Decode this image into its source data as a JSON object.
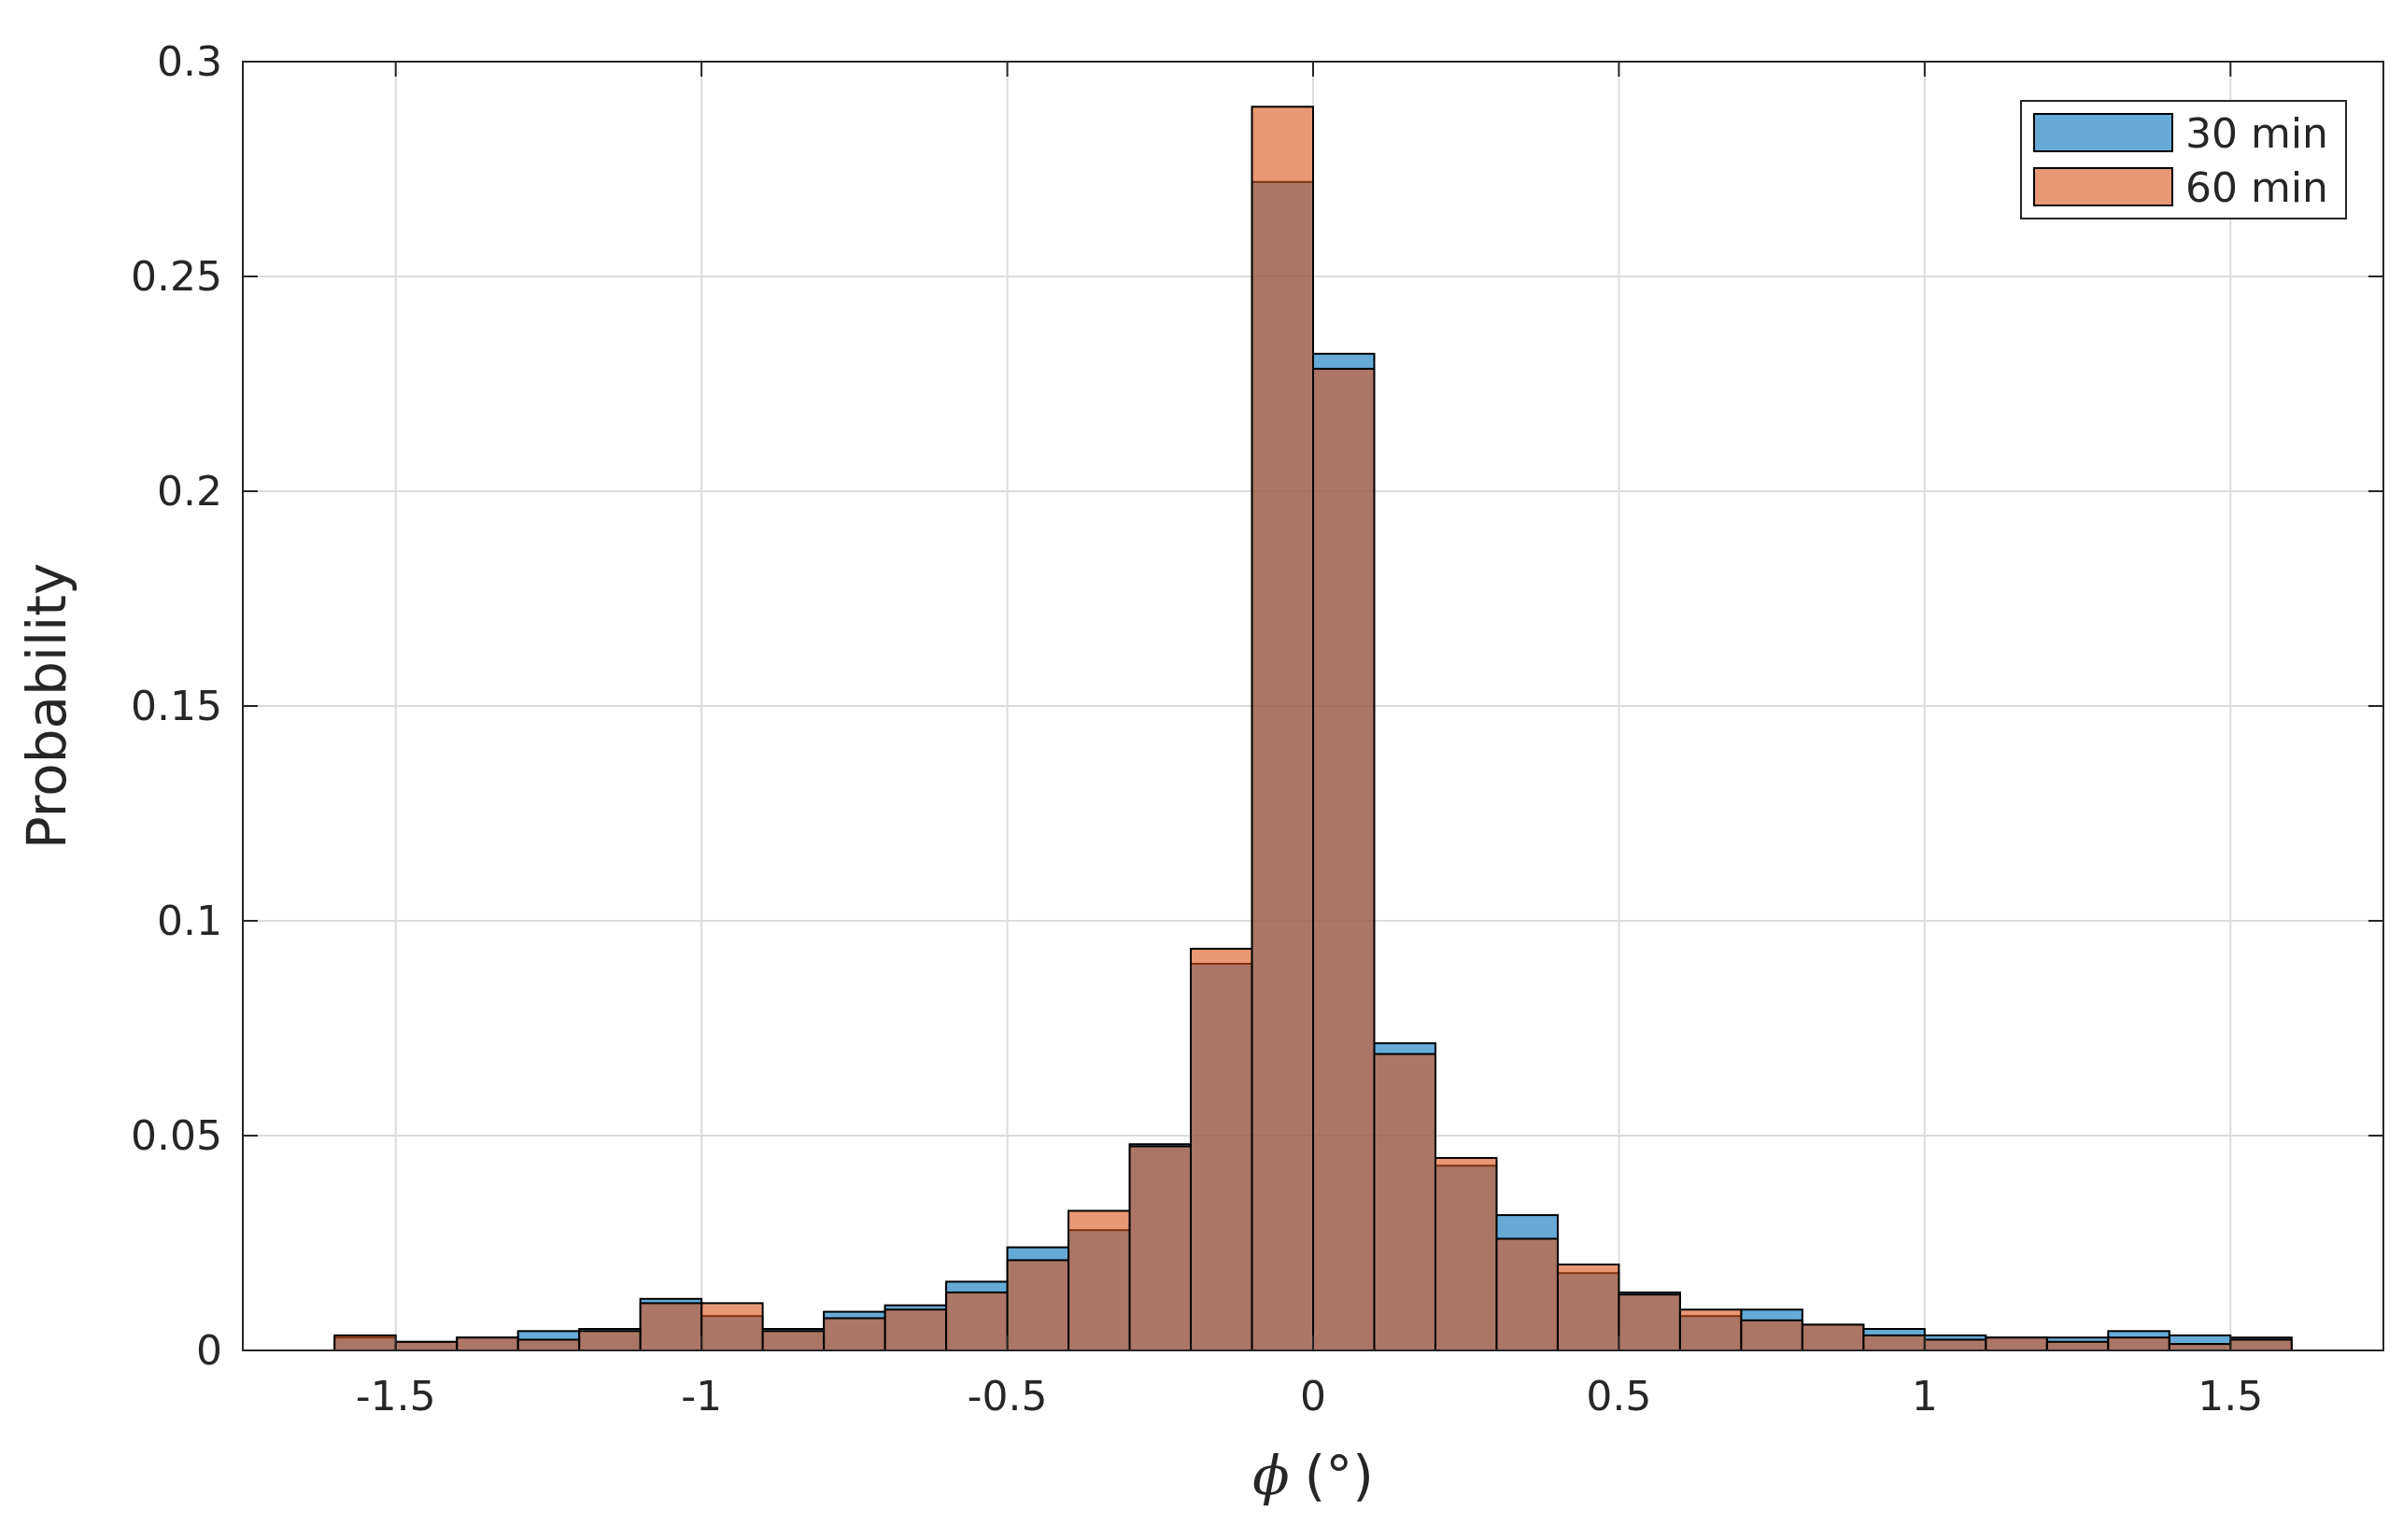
{
  "chart_data": {
    "type": "bar",
    "xlabel_symbol": "ϕ",
    "xlabel_unit": "(°)",
    "ylabel": "Probability",
    "xlim": [
      -1.75,
      1.75
    ],
    "ylim": [
      0,
      0.3
    ],
    "grid": true,
    "legend_position": "top-right",
    "xticks": [
      -1.5,
      -1,
      -0.5,
      0,
      0.5,
      1,
      1.5
    ],
    "xtick_labels": [
      "-1.5",
      "-1",
      "-0.5",
      "0",
      "0.5",
      "1",
      "1.5"
    ],
    "yticks": [
      0,
      0.05,
      0.1,
      0.15,
      0.2,
      0.25,
      0.3
    ],
    "ytick_labels": [
      "0",
      "0.05",
      "0.1",
      "0.15",
      "0.2",
      "0.25",
      "0.3"
    ],
    "bin_edges": [
      -1.6,
      -1.5,
      -1.4,
      -1.3,
      -1.2,
      -1.1,
      -1.0,
      -0.9,
      -0.8,
      -0.7,
      -0.6,
      -0.5,
      -0.4,
      -0.3,
      -0.2,
      -0.1,
      0.0,
      0.1,
      0.2,
      0.3,
      0.4,
      0.5,
      0.6,
      0.7,
      0.8,
      0.9,
      1.0,
      1.1,
      1.2,
      1.3,
      1.4,
      1.5,
      1.6
    ],
    "series": [
      {
        "name": "30 min",
        "color": "#0072BD",
        "values": [
          0.003,
          0.002,
          0.003,
          0.0045,
          0.005,
          0.012,
          0.008,
          0.005,
          0.009,
          0.0105,
          0.016,
          0.024,
          0.028,
          0.048,
          0.09,
          0.272,
          0.232,
          0.0715,
          0.043,
          0.0315,
          0.018,
          0.0135,
          0.008,
          0.0095,
          0.006,
          0.005,
          0.0035,
          0.003,
          0.003,
          0.0045,
          0.0035,
          0.003
        ]
      },
      {
        "name": "60 min",
        "color": "#D95319",
        "values": [
          0.0035,
          0.002,
          0.003,
          0.0025,
          0.0045,
          0.011,
          0.011,
          0.0045,
          0.0075,
          0.0095,
          0.0135,
          0.021,
          0.0325,
          0.0475,
          0.0935,
          0.2895,
          0.2285,
          0.069,
          0.0448,
          0.026,
          0.02,
          0.013,
          0.0095,
          0.007,
          0.006,
          0.0035,
          0.0025,
          0.003,
          0.002,
          0.003,
          0.0015,
          0.0025
        ]
      }
    ]
  }
}
